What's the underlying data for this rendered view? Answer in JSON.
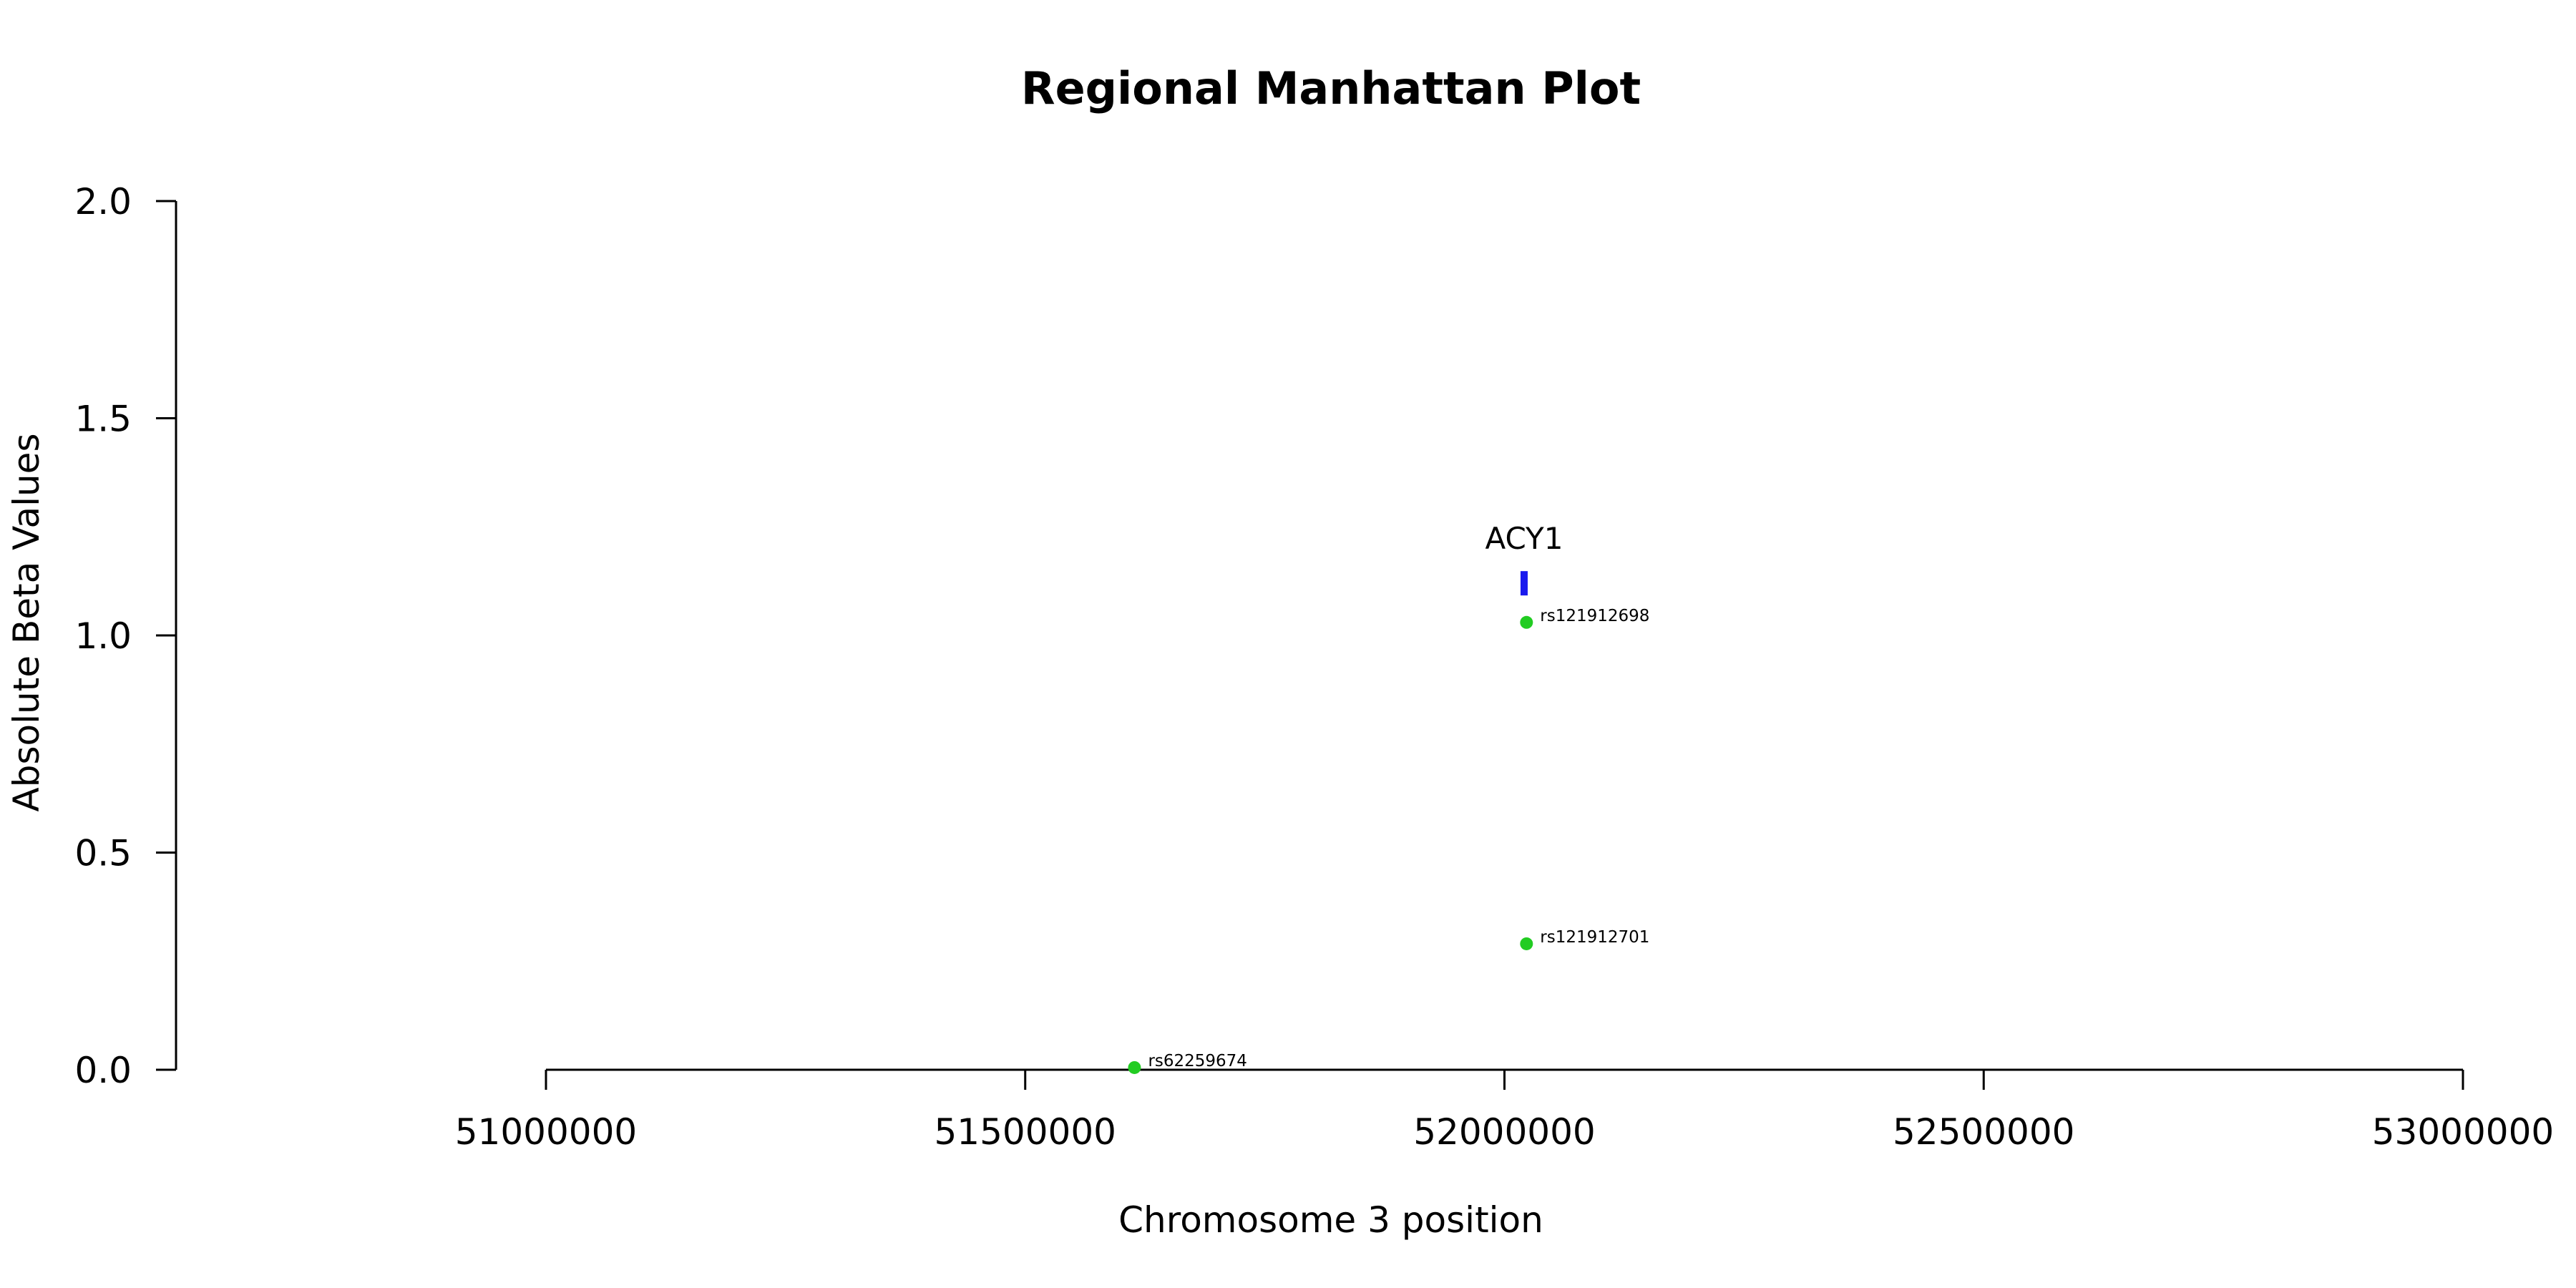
{
  "chart_data": {
    "type": "scatter",
    "title": "Regional Manhattan Plot",
    "xlabel": "Chromosome 3 position",
    "ylabel": "Absolute Beta Values",
    "xlim": [
      51000000,
      53000000
    ],
    "ylim": [
      0,
      2
    ],
    "x_ticks": [
      51000000,
      51500000,
      52000000,
      52500000,
      53000000
    ],
    "x_tick_labels": [
      "51000000",
      "51500000",
      "52000000",
      "52500000",
      "53000000"
    ],
    "y_ticks": [
      0,
      0.5,
      1,
      1.5,
      2
    ],
    "y_tick_labels": [
      "0.0",
      "0.5",
      "1.0",
      "1.5",
      "2.0"
    ],
    "grid": false,
    "point_color": "#22cc22",
    "points": [
      {
        "x": 52023000,
        "y": 1.03,
        "label": "rs121912698"
      },
      {
        "x": 52023000,
        "y": 0.29,
        "label": "rs121912701"
      },
      {
        "x": 51614000,
        "y": 0.005,
        "label": "rs62259674"
      }
    ],
    "genes": [
      {
        "name": "ACY1",
        "start": 52017000,
        "end": 52024000,
        "y": 1.12,
        "color": "#1a1aee"
      }
    ]
  }
}
